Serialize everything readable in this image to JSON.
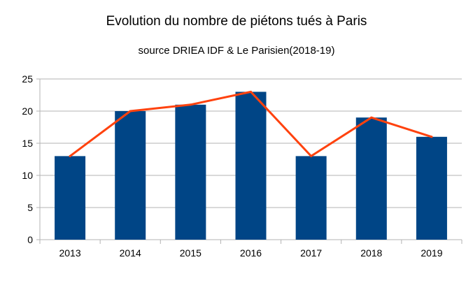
{
  "chart_data": {
    "type": "bar",
    "title": "Evolution du nombre de piétons tués à Paris",
    "subtitle": "source DRIEA IDF & Le Parisien(2018-19)",
    "xlabel": "",
    "ylabel": "",
    "categories": [
      "2013",
      "2014",
      "2015",
      "2016",
      "2017",
      "2018",
      "2019"
    ],
    "series": [
      {
        "type": "bar",
        "values": [
          13,
          20,
          21,
          23,
          13,
          19,
          16
        ],
        "color": "#004586"
      },
      {
        "type": "line",
        "values": [
          13,
          20,
          21,
          23,
          13,
          19,
          16
        ],
        "color": "#ff420e"
      }
    ],
    "ylim": [
      0,
      25
    ],
    "yticks": [
      "0",
      "5",
      "10",
      "15",
      "20",
      "25"
    ],
    "grid": true,
    "legend": "none"
  }
}
